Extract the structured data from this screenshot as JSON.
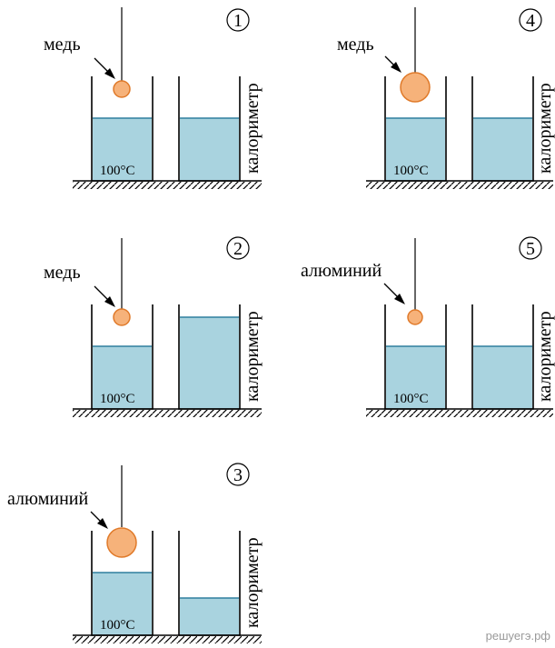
{
  "colors": {
    "water": "#a9d3df",
    "waterline": "#2f7f9e",
    "ball": "#f6b27a",
    "ballStroke": "#e07a2a",
    "wall": "#000000"
  },
  "experiments": [
    {
      "id": "1",
      "metal": "медь",
      "temperature": "100°C",
      "calorimeter": "калориметр",
      "ball_size": "small",
      "calorimeter_water": "medium"
    },
    {
      "id": "2",
      "metal": "медь",
      "temperature": "100°C",
      "calorimeter": "калориметр",
      "ball_size": "small",
      "calorimeter_water": "high"
    },
    {
      "id": "3",
      "metal": "алюминий",
      "temperature": "100°C",
      "calorimeter": "калориметр",
      "ball_size": "large",
      "calorimeter_water": "low"
    },
    {
      "id": "4",
      "metal": "медь",
      "temperature": "100°C",
      "calorimeter": "калориметр",
      "ball_size": "large",
      "calorimeter_water": "medium"
    },
    {
      "id": "5",
      "metal": "алюминий",
      "temperature": "100°C",
      "calorimeter": "калориметр",
      "ball_size": "small",
      "calorimeter_water": "medium"
    }
  ],
  "watermark": "решуегэ.рф"
}
